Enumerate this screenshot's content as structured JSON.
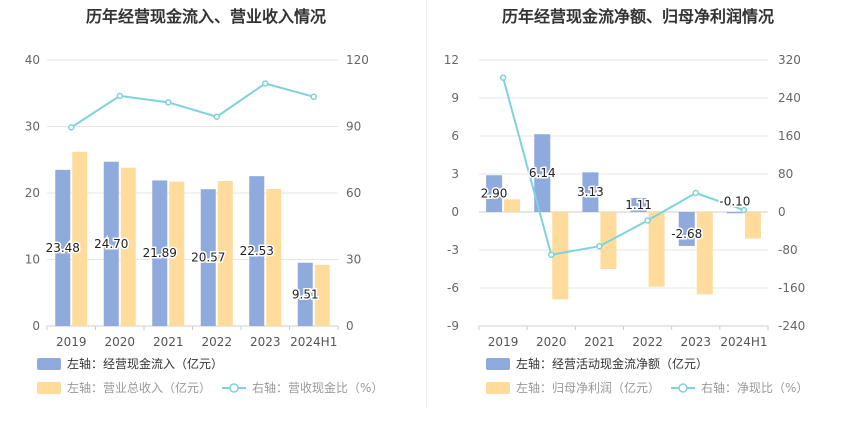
{
  "chart_data": [
    {
      "type": "bar",
      "title": "历年经营现金流入、营业收入情况",
      "categories": [
        "2019",
        "2020",
        "2021",
        "2022",
        "2023",
        "2024H1"
      ],
      "left_axis": {
        "min": 0,
        "max": 40,
        "ticks": [
          0,
          10,
          20,
          30,
          40
        ]
      },
      "right_axis": {
        "min": 0,
        "max": 120,
        "ticks": [
          0,
          30,
          60,
          90,
          120
        ]
      },
      "grid": true,
      "legend_position": "bottom",
      "series": [
        {
          "name": "左轴：经营现金流入（亿元）",
          "kind": "bar",
          "axis": "left",
          "color": "#8faadc",
          "values": [
            23.48,
            24.7,
            21.89,
            20.57,
            22.53,
            9.51
          ],
          "labels": [
            "23.48",
            "24.70",
            "21.89",
            "20.57",
            "22.53",
            "9.51"
          ]
        },
        {
          "name": "左轴：营业总收入（亿元）",
          "kind": "bar",
          "axis": "left",
          "color": "#ffdc9c",
          "values": [
            26.2,
            23.8,
            21.7,
            21.8,
            20.6,
            9.2
          ]
        },
        {
          "name": "右轴：营收现金比（%）",
          "kind": "line",
          "axis": "right",
          "color": "#7ed3dc",
          "values": [
            89.6,
            103.8,
            100.9,
            94.4,
            109.4,
            103.4
          ]
        }
      ]
    },
    {
      "type": "bar",
      "title": "历年经营现金流净额、归母净利润情况",
      "categories": [
        "2019",
        "2020",
        "2021",
        "2022",
        "2023",
        "2024H1"
      ],
      "left_axis": {
        "min": -9,
        "max": 12,
        "ticks": [
          -9,
          -6,
          -3,
          0,
          3,
          6,
          9,
          12
        ]
      },
      "right_axis": {
        "min": -240,
        "max": 320,
        "ticks": [
          -240,
          -160,
          -80,
          0,
          80,
          160,
          240,
          320
        ]
      },
      "grid": true,
      "legend_position": "bottom",
      "series": [
        {
          "name": "左轴：经营活动现金流净额（亿元）",
          "kind": "bar",
          "axis": "left",
          "color": "#8faadc",
          "values": [
            2.9,
            6.14,
            3.13,
            1.11,
            -2.68,
            -0.1
          ],
          "labels": [
            "2.90",
            "6.14",
            "3.13",
            "1.11",
            "-2.68",
            "-0.10"
          ]
        },
        {
          "name": "左轴：归母净利润（亿元）",
          "kind": "bar",
          "axis": "left",
          "color": "#ffdc9c",
          "values": [
            1.0,
            -6.9,
            -4.5,
            -5.9,
            -6.5,
            -2.1
          ]
        },
        {
          "name": "右轴：净现比（%）",
          "kind": "line",
          "axis": "right",
          "color": "#7ed3dc",
          "values": [
            283,
            -90,
            -72,
            -18,
            40,
            4
          ]
        }
      ]
    }
  ]
}
